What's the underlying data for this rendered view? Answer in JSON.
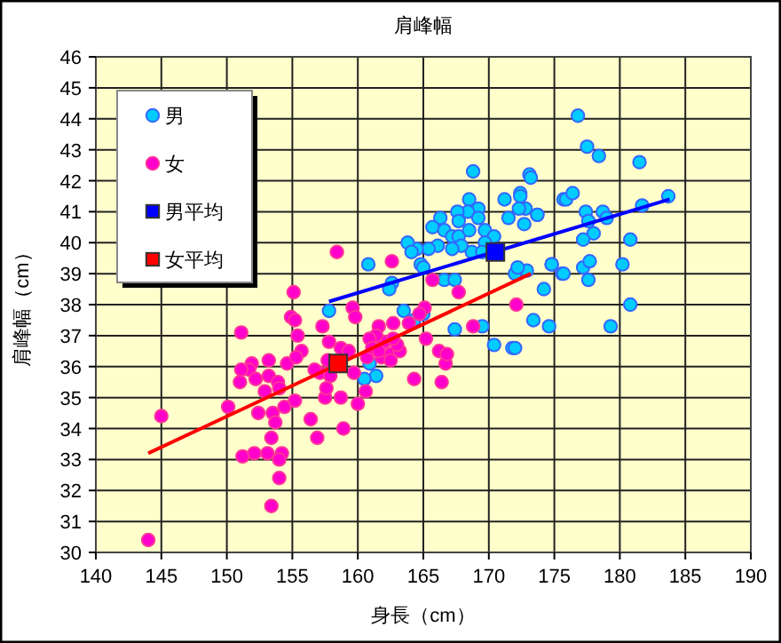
{
  "chart_data": {
    "type": "scatter",
    "title": "肩峰幅",
    "xlabel": "身長（cm）",
    "ylabel": "肩峰幅（cm）",
    "xlim": [
      140,
      190
    ],
    "xticks": [
      140,
      145,
      150,
      155,
      160,
      165,
      170,
      175,
      180,
      185,
      190
    ],
    "ylim": [
      30,
      46
    ],
    "yticks": [
      30,
      31,
      32,
      33,
      34,
      35,
      36,
      37,
      38,
      39,
      40,
      41,
      42,
      43,
      44,
      45,
      46
    ],
    "grid": true,
    "legend": "top left",
    "series": [
      {
        "name": "男",
        "type": "scatter",
        "marker": "circle",
        "color": "#00ccff",
        "x": [
          168.8,
          173.1,
          171.2,
          172.4,
          172.8,
          173.7,
          171.5,
          175.7,
          168.5,
          169.2,
          168.4,
          167.6,
          167.7,
          169.2,
          166.3,
          165.7,
          166.6,
          167.2,
          167.7,
          168.5,
          169.7,
          170.4,
          169.7,
          168.7,
          169.5,
          167.9,
          167.2,
          166.1,
          165.4,
          164.5,
          163.8,
          164.1,
          164.8,
          165.0,
          160.8,
          166.6,
          167.4,
          162.6,
          162.4,
          157.8,
          163.5,
          165.0,
          164.3,
          167.4,
          169.5,
          170.4,
          171.8,
          172.0,
          172.9,
          172.2,
          174.8,
          175.6,
          160.9,
          161.4,
          160.5,
          176.8,
          177.5,
          178.4,
          181.5,
          173.2,
          172.4,
          175.9,
          176.4,
          172.3,
          173.7,
          172.7,
          177.4,
          178.7,
          179.0,
          177.6,
          178.0,
          177.2,
          181.7,
          183.7,
          180.8,
          174.8,
          175.7,
          177.2,
          177.7,
          177.6,
          180.2,
          174.2,
          180.8,
          173.4,
          174.6,
          179.3,
          172.0
        ],
        "values": [
          42.3,
          42.2,
          41.4,
          41.6,
          41.1,
          40.9,
          40.8,
          41.4,
          41.4,
          41.1,
          41.0,
          41.0,
          40.7,
          40.8,
          40.8,
          40.5,
          40.4,
          40.2,
          40.2,
          40.4,
          40.4,
          40.2,
          40.0,
          39.7,
          39.7,
          39.9,
          39.8,
          39.9,
          39.8,
          39.8,
          40.0,
          39.7,
          39.3,
          39.2,
          39.3,
          38.8,
          38.8,
          38.7,
          38.5,
          37.8,
          37.8,
          37.7,
          37.5,
          37.2,
          37.3,
          36.7,
          36.6,
          39.0,
          39.1,
          39.2,
          39.3,
          39.0,
          36.1,
          35.7,
          35.6,
          44.1,
          43.1,
          42.8,
          42.6,
          42.1,
          41.5,
          41.4,
          41.6,
          41.1,
          40.9,
          40.6,
          41.0,
          41.0,
          40.8,
          40.7,
          40.3,
          40.1,
          41.2,
          41.5,
          40.1,
          39.3,
          39.0,
          39.2,
          39.4,
          38.8,
          39.3,
          38.5,
          38.0,
          37.5,
          37.3,
          37.3,
          36.6
        ]
      },
      {
        "name": "女",
        "type": "scatter",
        "marker": "circle",
        "color": "#ff00cc",
        "x": [
          158.4,
          162.6,
          155.1,
          151.1,
          154.9,
          155.2,
          155.4,
          157.3,
          159.6,
          159.8,
          157.8,
          158.7,
          154.6,
          153.2,
          151.9,
          151.7,
          151.1,
          151.0,
          152.2,
          153.2,
          153.9,
          152.9,
          154.0,
          150.1,
          152.4,
          153.5,
          153.7,
          154.4,
          155.2,
          156.4,
          156.9,
          158.9,
          160.0,
          157.5,
          158.7,
          157.6,
          157.1,
          156.7,
          157.9,
          157.7,
          155.7,
          155.3,
          153.4,
          151.2,
          152.1,
          153.1,
          154.2,
          154.0,
          154.0,
          153.4,
          144.0,
          145.0,
          159.3,
          160.6,
          160.7,
          159.7,
          161.6,
          161.8,
          162.5,
          163.2,
          162.0,
          162.7,
          161.4,
          160.9,
          161.1,
          165.7,
          167.7,
          165.1,
          165.2,
          166.2,
          166.7,
          166.4,
          164.3,
          168.8,
          172.1,
          166.8,
          163.9,
          163.0,
          162.5,
          164.7,
          162.7,
          161.6
        ],
        "values": [
          39.7,
          39.4,
          38.4,
          37.1,
          37.6,
          37.5,
          37.0,
          37.3,
          37.9,
          37.6,
          36.8,
          36.6,
          36.1,
          36.2,
          36.1,
          35.9,
          35.9,
          35.5,
          35.6,
          35.7,
          35.5,
          35.2,
          35.3,
          34.7,
          34.5,
          34.5,
          34.2,
          34.7,
          34.9,
          34.3,
          33.7,
          34.0,
          34.8,
          35.0,
          35.0,
          35.3,
          35.8,
          35.9,
          35.7,
          36.2,
          36.5,
          36.3,
          33.7,
          33.1,
          33.2,
          33.2,
          33.2,
          33.0,
          32.4,
          31.5,
          30.4,
          34.4,
          36.5,
          35.2,
          36.3,
          35.8,
          37.3,
          36.3,
          36.4,
          36.5,
          36.8,
          37.4,
          37.0,
          36.9,
          36.6,
          38.8,
          38.4,
          37.9,
          36.9,
          36.5,
          36.1,
          35.5,
          35.6,
          37.3,
          38.0,
          36.4,
          37.4,
          36.7,
          36.2,
          37.7,
          36.9,
          36.5
        ]
      },
      {
        "type": "line",
        "color": "#0000ff",
        "x": [
          157.8,
          183.8
        ],
        "values": [
          38.1,
          41.4
        ]
      },
      {
        "type": "line",
        "color": "#ff0000",
        "x": [
          144.0,
          173.2
        ],
        "values": [
          33.2,
          39.0
        ]
      },
      {
        "name": "男平均",
        "type": "scatter",
        "marker": "square",
        "color": "#0000ff",
        "x": [
          170.5
        ],
        "values": [
          39.7
        ]
      },
      {
        "name": "女平均",
        "type": "scatter",
        "marker": "square",
        "color": "#ff0000",
        "x": [
          158.5
        ],
        "values": [
          36.1
        ]
      }
    ]
  }
}
